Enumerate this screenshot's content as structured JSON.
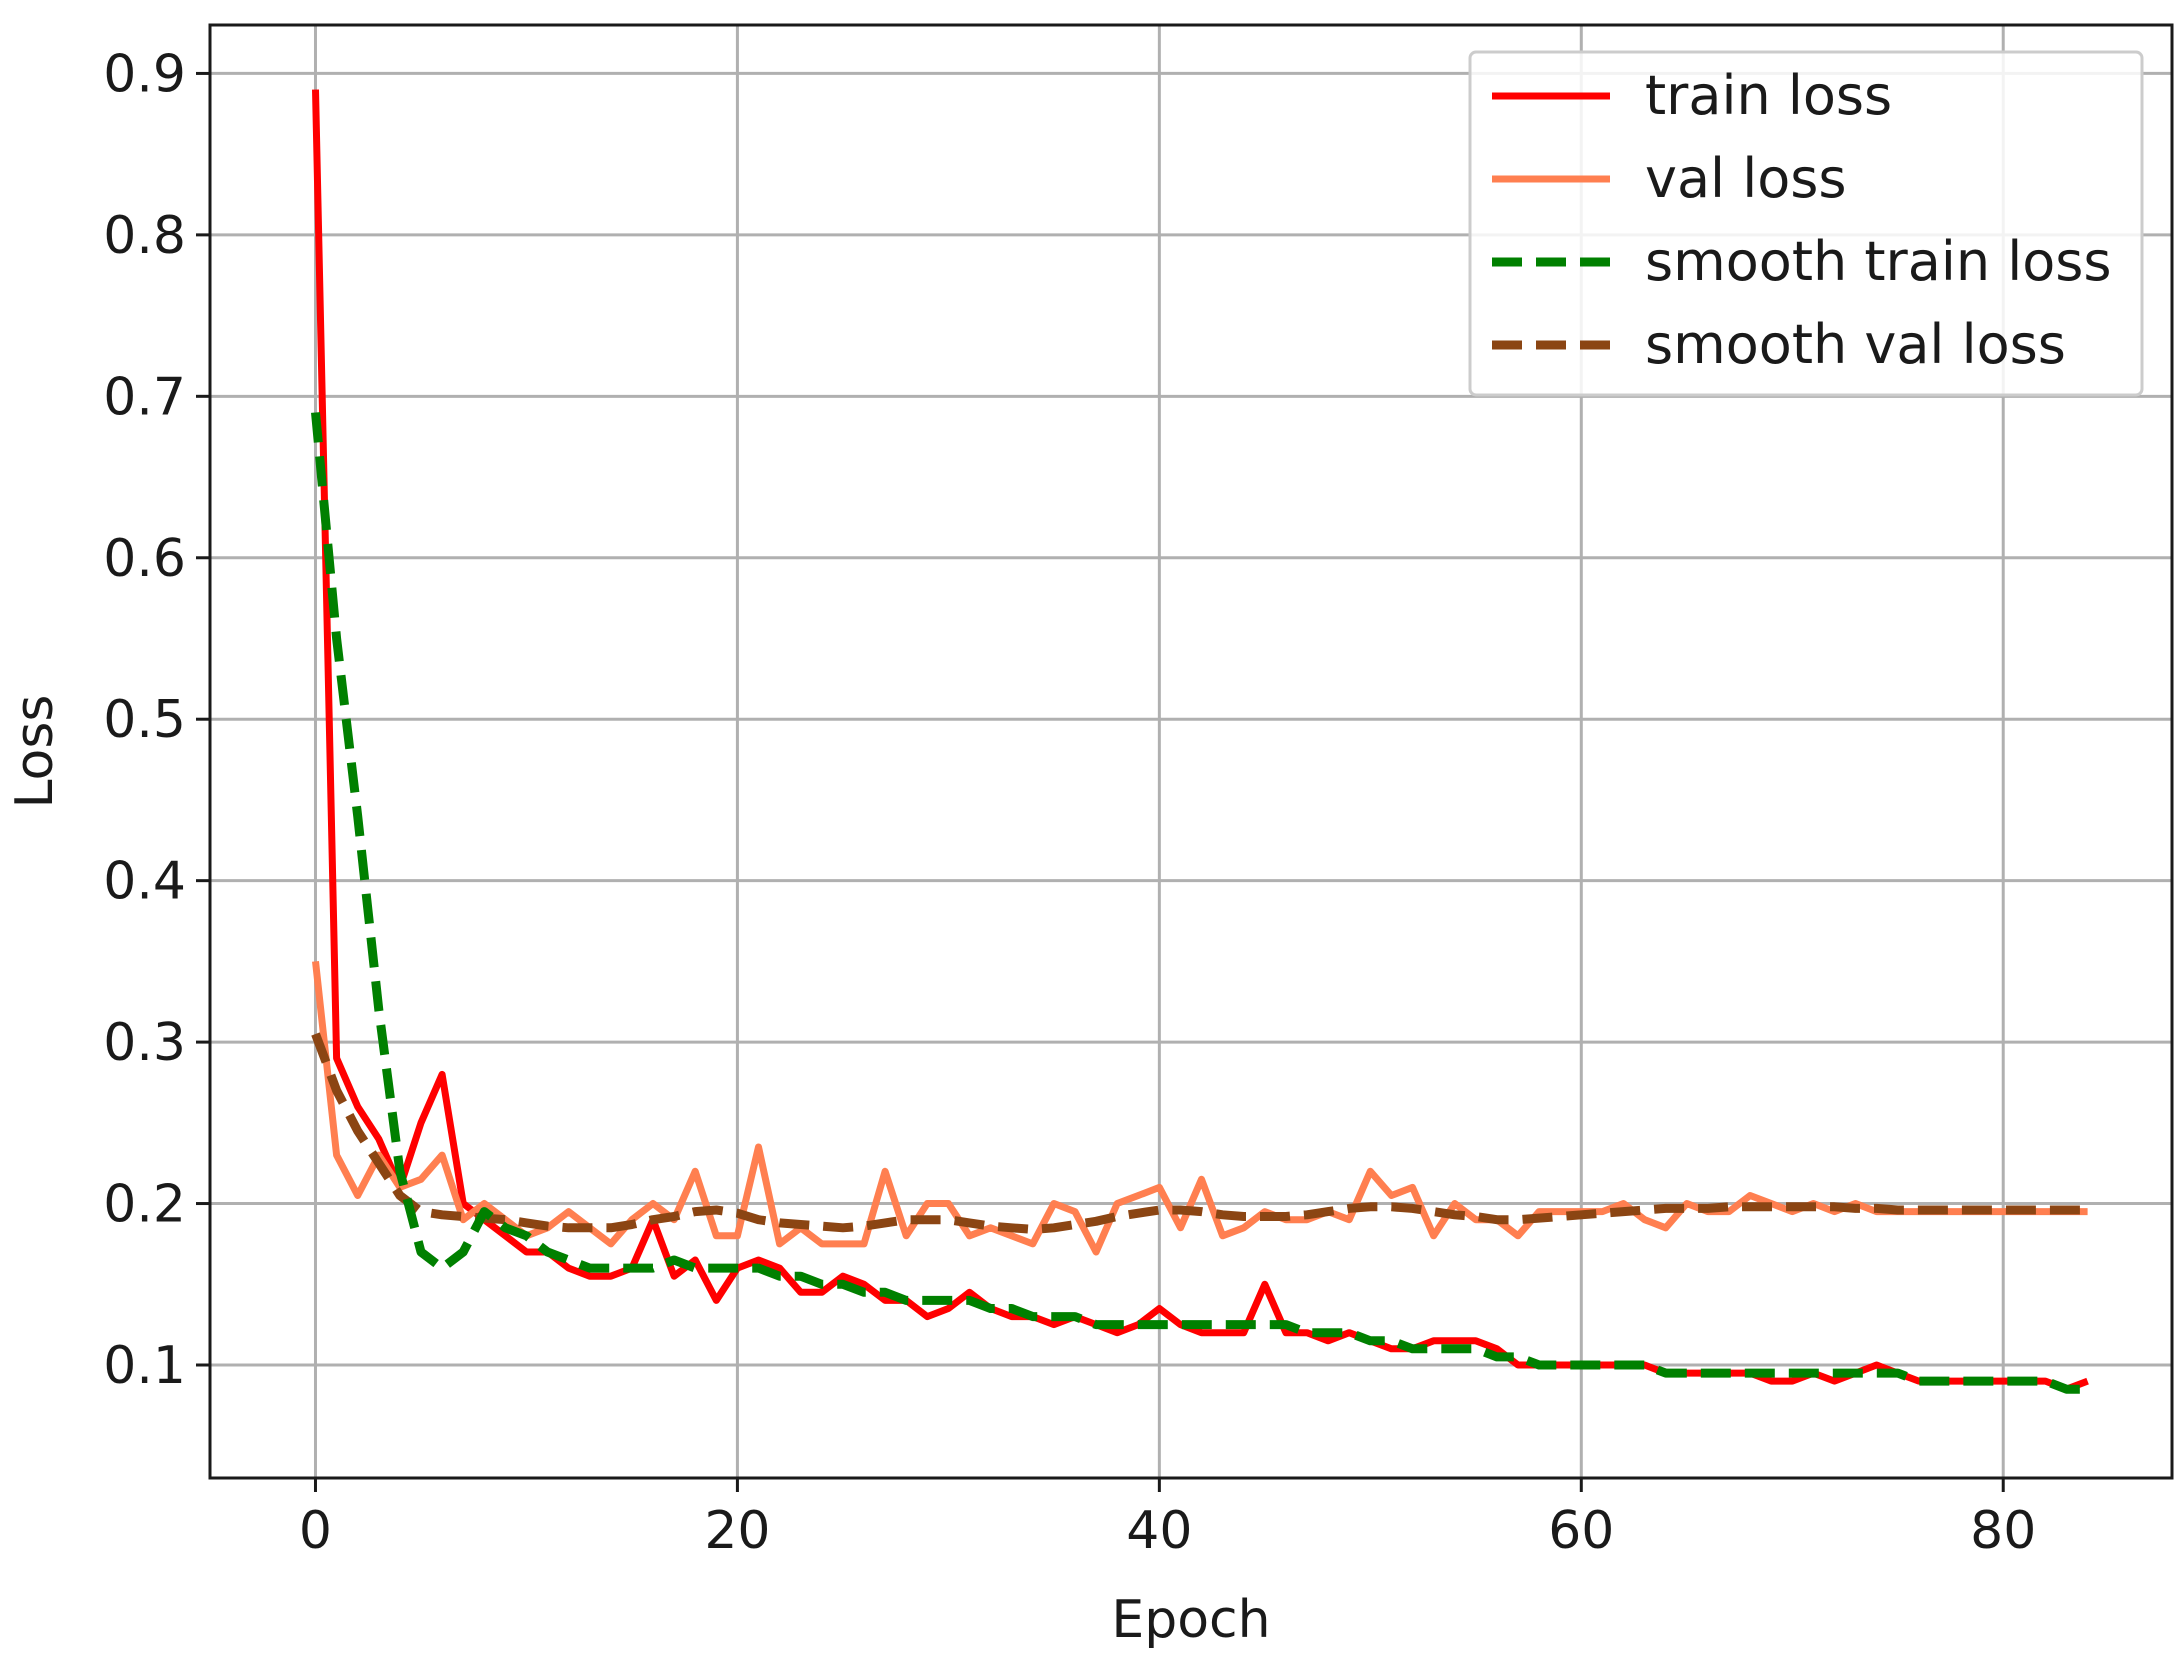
{
  "chart_data": {
    "type": "line",
    "title": "",
    "xlabel": "Epoch",
    "ylabel": "Loss",
    "xlim": [
      -5,
      88
    ],
    "ylim": [
      0.03,
      0.93
    ],
    "xticks": [
      0,
      20,
      40,
      60,
      80
    ],
    "xtick_labels": [
      "0",
      "20",
      "40",
      "60",
      "80"
    ],
    "yticks": [
      0.1,
      0.2,
      0.3,
      0.4,
      0.5,
      0.6,
      0.7,
      0.8,
      0.9
    ],
    "ytick_labels": [
      "0.1",
      "0.2",
      "0.3",
      "0.4",
      "0.5",
      "0.6",
      "0.7",
      "0.8",
      "0.9"
    ],
    "grid": true,
    "legend_position": "top-right",
    "x": [
      0,
      1,
      2,
      3,
      4,
      5,
      6,
      7,
      8,
      9,
      10,
      11,
      12,
      13,
      14,
      15,
      16,
      17,
      18,
      19,
      20,
      21,
      22,
      23,
      24,
      25,
      26,
      27,
      28,
      29,
      30,
      31,
      32,
      33,
      34,
      35,
      36,
      37,
      38,
      39,
      40,
      41,
      42,
      43,
      44,
      45,
      46,
      47,
      48,
      49,
      50,
      51,
      52,
      53,
      54,
      55,
      56,
      57,
      58,
      59,
      60,
      61,
      62,
      63,
      64,
      65,
      66,
      67,
      68,
      69,
      70,
      71,
      72,
      73,
      74,
      75,
      76,
      77,
      78,
      79,
      80,
      81,
      82,
      83,
      84
    ],
    "series": [
      {
        "name": "train loss",
        "color": "#ff0000",
        "dash": "solid",
        "values": [
          0.89,
          0.29,
          0.26,
          0.24,
          0.21,
          0.25,
          0.28,
          0.2,
          0.19,
          0.18,
          0.17,
          0.17,
          0.16,
          0.155,
          0.155,
          0.16,
          0.19,
          0.155,
          0.165,
          0.14,
          0.16,
          0.165,
          0.16,
          0.145,
          0.145,
          0.155,
          0.15,
          0.14,
          0.14,
          0.13,
          0.135,
          0.145,
          0.135,
          0.13,
          0.13,
          0.125,
          0.13,
          0.125,
          0.12,
          0.125,
          0.135,
          0.125,
          0.12,
          0.12,
          0.12,
          0.15,
          0.12,
          0.12,
          0.115,
          0.12,
          0.115,
          0.11,
          0.11,
          0.115,
          0.115,
          0.115,
          0.11,
          0.1,
          0.1,
          0.1,
          0.1,
          0.1,
          0.1,
          0.1,
          0.095,
          0.095,
          0.095,
          0.095,
          0.095,
          0.09,
          0.09,
          0.095,
          0.09,
          0.095,
          0.1,
          0.095,
          0.09,
          0.09,
          0.09,
          0.09,
          0.09,
          0.09,
          0.09,
          0.085,
          0.09
        ]
      },
      {
        "name": "val loss",
        "color": "#ff7f50",
        "dash": "solid",
        "values": [
          0.35,
          0.23,
          0.205,
          0.23,
          0.21,
          0.215,
          0.23,
          0.19,
          0.2,
          0.19,
          0.18,
          0.185,
          0.195,
          0.185,
          0.175,
          0.19,
          0.2,
          0.19,
          0.22,
          0.18,
          0.18,
          0.235,
          0.175,
          0.185,
          0.175,
          0.175,
          0.175,
          0.22,
          0.18,
          0.2,
          0.2,
          0.18,
          0.185,
          0.18,
          0.175,
          0.2,
          0.195,
          0.17,
          0.2,
          0.205,
          0.21,
          0.185,
          0.215,
          0.18,
          0.185,
          0.195,
          0.19,
          0.19,
          0.195,
          0.19,
          0.22,
          0.205,
          0.21,
          0.18,
          0.2,
          0.19,
          0.19,
          0.18,
          0.195,
          0.195,
          0.195,
          0.195,
          0.2,
          0.19,
          0.185,
          0.2,
          0.195,
          0.195,
          0.205,
          0.2,
          0.195,
          0.2,
          0.195,
          0.2,
          0.195,
          0.195,
          0.195,
          0.195,
          0.195,
          0.195,
          0.195,
          0.195,
          0.195,
          0.195,
          0.195
        ]
      },
      {
        "name": "smooth train loss",
        "color": "#008000",
        "dash": "dashed",
        "values": [
          0.69,
          0.55,
          0.44,
          0.32,
          0.22,
          0.17,
          0.16,
          0.17,
          0.195,
          0.185,
          0.18,
          0.17,
          0.165,
          0.16,
          0.16,
          0.16,
          0.16,
          0.165,
          0.16,
          0.16,
          0.16,
          0.16,
          0.155,
          0.155,
          0.15,
          0.15,
          0.145,
          0.145,
          0.14,
          0.14,
          0.14,
          0.14,
          0.135,
          0.135,
          0.13,
          0.13,
          0.13,
          0.125,
          0.125,
          0.125,
          0.125,
          0.125,
          0.125,
          0.125,
          0.125,
          0.125,
          0.125,
          0.12,
          0.12,
          0.12,
          0.115,
          0.115,
          0.11,
          0.11,
          0.11,
          0.11,
          0.105,
          0.105,
          0.1,
          0.1,
          0.1,
          0.1,
          0.1,
          0.1,
          0.095,
          0.095,
          0.095,
          0.095,
          0.095,
          0.095,
          0.095,
          0.095,
          0.095,
          0.095,
          0.095,
          0.095,
          0.09,
          0.09,
          0.09,
          0.09,
          0.09,
          0.09,
          0.09,
          0.085,
          0.085
        ]
      },
      {
        "name": "smooth val loss",
        "color": "#8b4513",
        "dash": "dashed",
        "values": [
          0.305,
          0.27,
          0.245,
          0.225,
          0.205,
          0.195,
          0.193,
          0.192,
          0.191,
          0.19,
          0.188,
          0.186,
          0.185,
          0.185,
          0.185,
          0.187,
          0.19,
          0.192,
          0.195,
          0.196,
          0.194,
          0.19,
          0.188,
          0.187,
          0.186,
          0.185,
          0.186,
          0.188,
          0.19,
          0.19,
          0.19,
          0.188,
          0.186,
          0.185,
          0.184,
          0.185,
          0.187,
          0.189,
          0.192,
          0.194,
          0.196,
          0.196,
          0.195,
          0.193,
          0.192,
          0.192,
          0.192,
          0.193,
          0.195,
          0.197,
          0.198,
          0.198,
          0.197,
          0.195,
          0.193,
          0.192,
          0.19,
          0.19,
          0.191,
          0.192,
          0.193,
          0.194,
          0.195,
          0.196,
          0.197,
          0.197,
          0.197,
          0.198,
          0.198,
          0.198,
          0.198,
          0.198,
          0.198,
          0.197,
          0.197,
          0.196,
          0.196,
          0.196,
          0.196,
          0.196,
          0.196,
          0.196,
          0.196,
          0.196,
          0.196
        ]
      }
    ]
  }
}
